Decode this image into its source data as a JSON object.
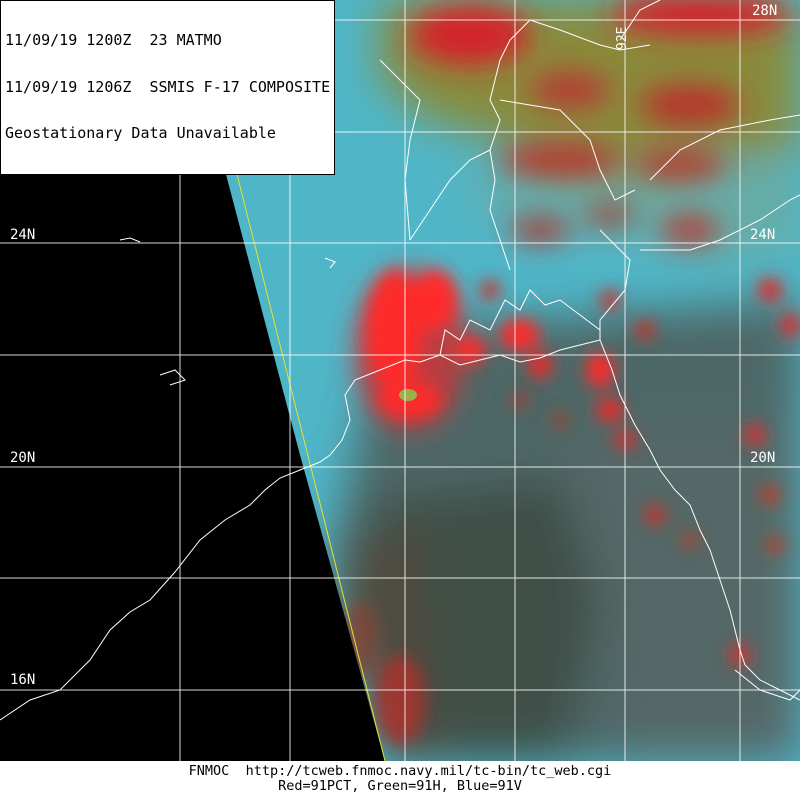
{
  "header": {
    "line1": "11/09/19 1200Z  23 MATMO",
    "line2": "11/09/19 1206Z  SSMIS F-17 COMPOSITE",
    "line3": "Geostationary Data Unavailable"
  },
  "lat_labels": {
    "l28_right": "28N",
    "l24_left": "24N",
    "l24_right": "24N",
    "l20_left": "20N",
    "l20_right": "20N",
    "l16_left": "16N"
  },
  "lon_labels": {
    "l92": "92E"
  },
  "footer": {
    "credit": "FNMOC  http://tcweb.fnmoc.navy.mil/tc-bin/tc_web.cgi",
    "channels": "Red=91PCT, Green=91H, Blue=91V"
  },
  "colors": {
    "background": "#000000",
    "scan_cyan": "#4fb6c8",
    "convection_red": "#e0202a",
    "grid": "#ffffff",
    "swath_edge": "#e8e030"
  }
}
